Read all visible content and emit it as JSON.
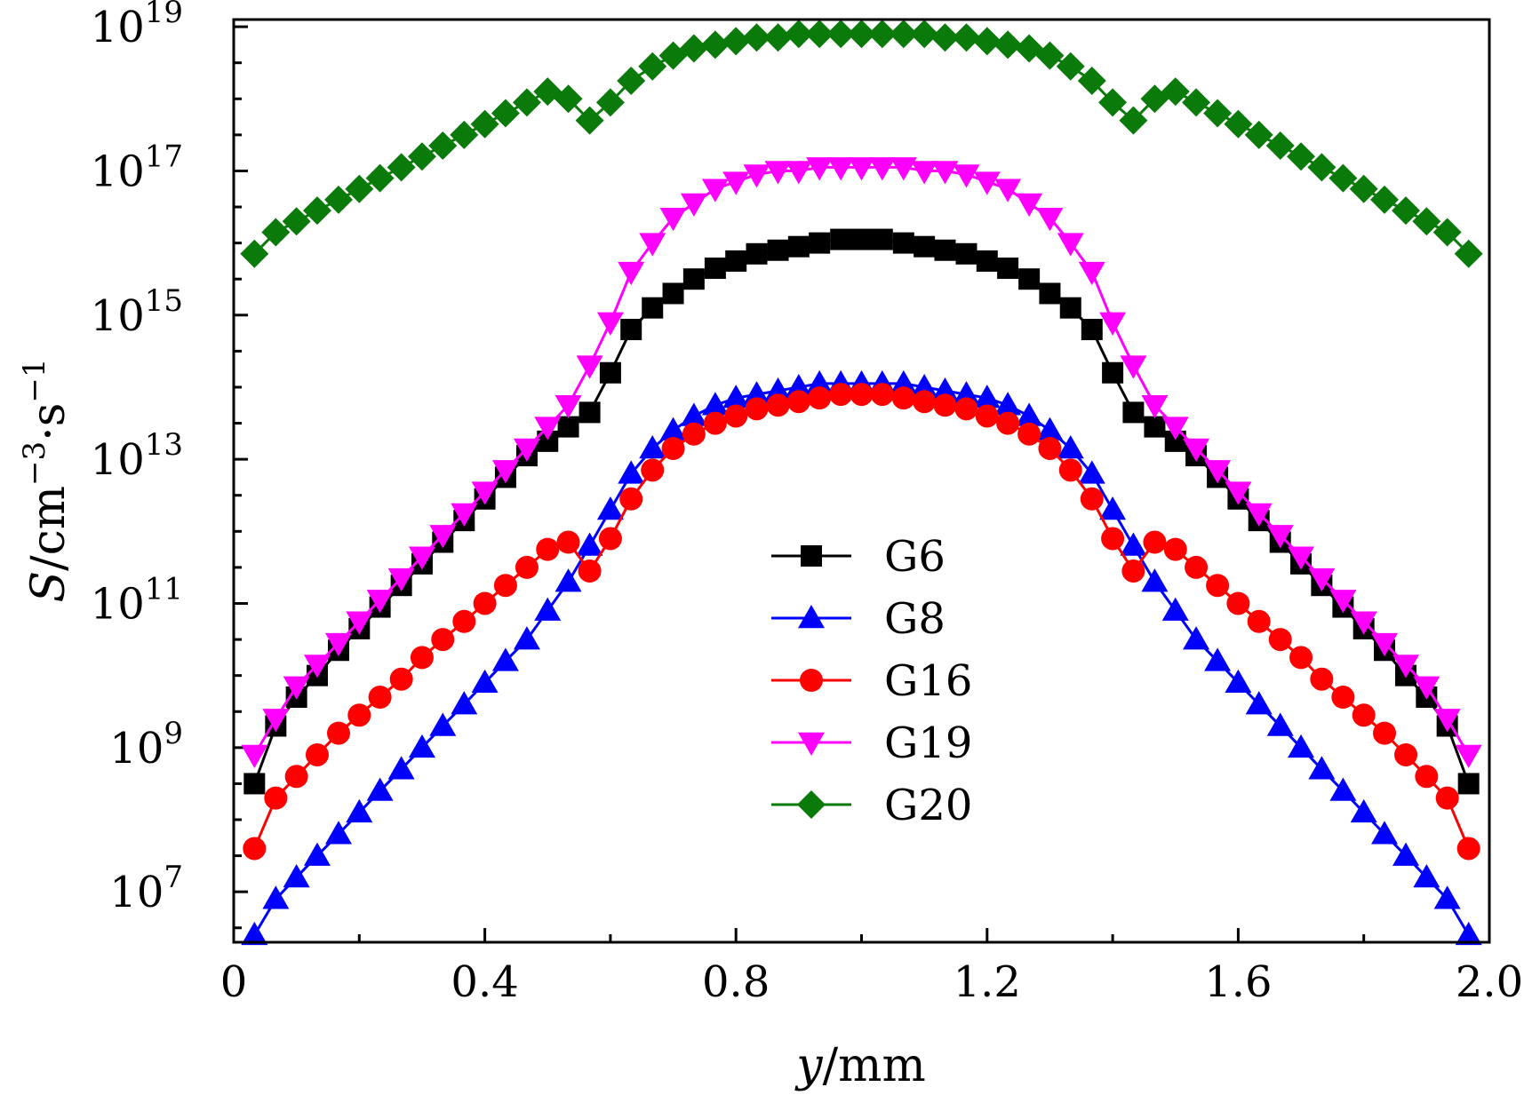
{
  "chart_data": {
    "type": "line",
    "title": "",
    "xlabel": {
      "italic": "y",
      "rest": "/mm"
    },
    "ylabel": {
      "italic": "S",
      "rest": "/cm",
      "exp1": "−3",
      "mid": "·s",
      "exp2": "−1"
    },
    "x_scale": "linear",
    "y_scale": "log",
    "xlim": [
      0,
      2.0
    ],
    "ylim_log10": [
      6.3,
      19.1
    ],
    "x_ticks": [
      0,
      0.4,
      0.8,
      1.2,
      1.6,
      2.0
    ],
    "x_tick_labels": [
      "0",
      "0.4",
      "0.8",
      "1.2",
      "1.6",
      "2.0"
    ],
    "y_ticks_log10": [
      7,
      9,
      11,
      13,
      15,
      17,
      19
    ],
    "y_tick_base": "10",
    "y_tick_exponents": [
      "7",
      "9",
      "11",
      "13",
      "15",
      "17",
      "19"
    ],
    "x": [
      0.033,
      0.067,
      0.1,
      0.133,
      0.167,
      0.2,
      0.233,
      0.267,
      0.3,
      0.333,
      0.367,
      0.4,
      0.433,
      0.467,
      0.5,
      0.533,
      0.567,
      0.6,
      0.633,
      0.667,
      0.7,
      0.733,
      0.767,
      0.8,
      0.833,
      0.867,
      0.9,
      0.933,
      0.967,
      1.0,
      1.033,
      1.067,
      1.1,
      1.133,
      1.167,
      1.2,
      1.233,
      1.267,
      1.3,
      1.333,
      1.367,
      1.4,
      1.433,
      1.467,
      1.5,
      1.533,
      1.567,
      1.6,
      1.633,
      1.667,
      1.7,
      1.733,
      1.767,
      1.8,
      1.833,
      1.867,
      1.9,
      1.933,
      1.967
    ],
    "series": [
      {
        "name": "G6",
        "color": "#000000",
        "marker": "square",
        "log10_values": [
          8.5,
          9.3,
          9.7,
          10.0,
          10.35,
          10.65,
          10.95,
          11.25,
          11.55,
          11.85,
          12.15,
          12.45,
          12.75,
          13.05,
          13.25,
          13.45,
          13.65,
          14.2,
          14.8,
          15.1,
          15.3,
          15.5,
          15.65,
          15.75,
          15.85,
          15.9,
          15.95,
          16.0,
          16.05,
          16.05,
          16.05,
          16.0,
          15.95,
          15.9,
          15.85,
          15.75,
          15.65,
          15.5,
          15.3,
          15.1,
          14.8,
          14.2,
          13.65,
          13.45,
          13.25,
          13.05,
          12.75,
          12.45,
          12.15,
          11.85,
          11.55,
          11.25,
          10.95,
          10.65,
          10.35,
          10.0,
          9.7,
          9.3,
          8.5
        ]
      },
      {
        "name": "G8",
        "color": "#0000ff",
        "marker": "triangle-up",
        "log10_values": [
          6.4,
          6.9,
          7.2,
          7.5,
          7.8,
          8.1,
          8.4,
          8.7,
          9.0,
          9.3,
          9.6,
          9.9,
          10.2,
          10.5,
          10.9,
          11.3,
          11.8,
          12.3,
          12.8,
          13.15,
          13.4,
          13.6,
          13.75,
          13.85,
          13.9,
          13.95,
          14.0,
          14.05,
          14.05,
          14.05,
          14.05,
          14.05,
          14.0,
          13.95,
          13.9,
          13.85,
          13.75,
          13.6,
          13.4,
          13.15,
          12.8,
          12.3,
          11.8,
          11.3,
          10.9,
          10.5,
          10.2,
          9.9,
          9.6,
          9.3,
          9.0,
          8.7,
          8.4,
          8.1,
          7.8,
          7.5,
          7.2,
          6.9,
          6.4
        ]
      },
      {
        "name": "G16",
        "color": "#ff0000",
        "marker": "circle",
        "log10_values": [
          7.6,
          8.3,
          8.6,
          8.9,
          9.2,
          9.45,
          9.7,
          9.95,
          10.25,
          10.5,
          10.75,
          11.0,
          11.25,
          11.5,
          11.75,
          11.85,
          11.45,
          11.9,
          12.45,
          12.85,
          13.15,
          13.35,
          13.5,
          13.6,
          13.7,
          13.75,
          13.8,
          13.85,
          13.9,
          13.9,
          13.9,
          13.85,
          13.8,
          13.75,
          13.7,
          13.6,
          13.5,
          13.35,
          13.15,
          12.85,
          12.45,
          11.9,
          11.45,
          11.85,
          11.75,
          11.5,
          11.25,
          11.0,
          10.75,
          10.5,
          10.25,
          9.95,
          9.7,
          9.45,
          9.2,
          8.9,
          8.6,
          8.3,
          7.6
        ]
      },
      {
        "name": "G19",
        "color": "#ff00ff",
        "marker": "triangle-down",
        "log10_values": [
          8.9,
          9.4,
          9.85,
          10.15,
          10.45,
          10.75,
          11.05,
          11.35,
          11.65,
          11.95,
          12.25,
          12.55,
          12.85,
          13.15,
          13.45,
          13.75,
          14.3,
          14.9,
          15.6,
          16.0,
          16.35,
          16.55,
          16.75,
          16.85,
          16.95,
          17.0,
          17.0,
          17.05,
          17.05,
          17.05,
          17.05,
          17.05,
          17.0,
          17.0,
          16.95,
          16.85,
          16.75,
          16.55,
          16.35,
          16.0,
          15.6,
          14.9,
          14.3,
          13.75,
          13.45,
          13.15,
          12.85,
          12.55,
          12.25,
          11.95,
          11.65,
          11.35,
          11.05,
          10.75,
          10.45,
          10.15,
          9.85,
          9.4,
          8.9
        ]
      },
      {
        "name": "G20",
        "color": "#0a7a0a",
        "marker": "diamond",
        "log10_values": [
          15.85,
          16.15,
          16.3,
          16.45,
          16.6,
          16.75,
          16.9,
          17.05,
          17.2,
          17.35,
          17.5,
          17.65,
          17.8,
          17.95,
          18.1,
          18.0,
          17.7,
          17.95,
          18.25,
          18.45,
          18.6,
          18.7,
          18.75,
          18.8,
          18.85,
          18.85,
          18.9,
          18.9,
          18.9,
          18.9,
          18.9,
          18.9,
          18.9,
          18.85,
          18.85,
          18.8,
          18.75,
          18.7,
          18.6,
          18.45,
          18.25,
          17.95,
          17.7,
          18.0,
          18.1,
          17.95,
          17.8,
          17.65,
          17.5,
          17.35,
          17.2,
          17.05,
          16.9,
          16.75,
          16.6,
          16.45,
          16.3,
          16.15,
          15.85
        ]
      }
    ],
    "legend_position": "center"
  }
}
